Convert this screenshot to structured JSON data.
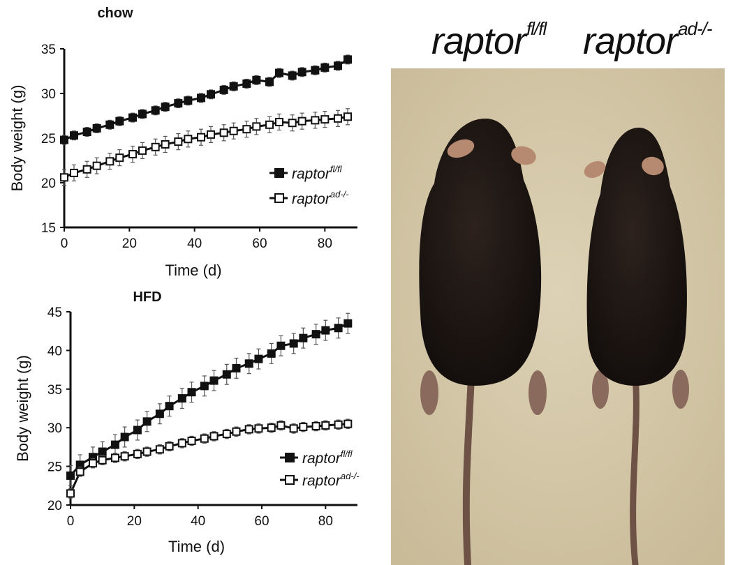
{
  "chart_data": [
    {
      "type": "line",
      "title": "chow",
      "xlabel": "Time (d)",
      "ylabel": "Body weight (g)",
      "xlim": [
        0,
        90
      ],
      "ylim": [
        15,
        35
      ],
      "xticks": [
        0,
        20,
        40,
        60,
        80
      ],
      "yticks": [
        15,
        20,
        25,
        30,
        35
      ],
      "x": [
        0,
        3,
        7,
        10,
        14,
        17,
        21,
        24,
        28,
        31,
        35,
        38,
        42,
        45,
        49,
        52,
        56,
        59,
        63,
        66,
        70,
        73,
        77,
        80,
        84,
        87
      ],
      "series": [
        {
          "name_base": "raptor",
          "name_sup": "fl/fl",
          "marker": "filled-square",
          "values": [
            24.8,
            25.3,
            25.7,
            26.1,
            26.5,
            26.9,
            27.3,
            27.7,
            28.1,
            28.5,
            28.9,
            29.2,
            29.5,
            29.9,
            30.4,
            30.8,
            31.1,
            31.5,
            31.3,
            32.3,
            32.0,
            32.4,
            32.6,
            32.9,
            33.1,
            33.8
          ],
          "error": 0.5
        },
        {
          "name_base": "raptor",
          "name_sup": "ad-/-",
          "marker": "open-square",
          "values": [
            20.6,
            21.1,
            21.5,
            21.9,
            22.4,
            22.8,
            23.2,
            23.6,
            24.0,
            24.3,
            24.6,
            24.9,
            25.1,
            25.4,
            25.6,
            25.8,
            26.0,
            26.3,
            26.5,
            26.8,
            26.7,
            26.9,
            27.0,
            27.1,
            27.2,
            27.4
          ],
          "error": 0.9
        }
      ],
      "legend": "right"
    },
    {
      "type": "line",
      "title": "HFD",
      "xlabel": "Time (d)",
      "ylabel": "Body weight (g)",
      "xlim": [
        0,
        90
      ],
      "ylim": [
        20,
        45
      ],
      "xticks": [
        0,
        20,
        40,
        60,
        80
      ],
      "yticks": [
        20,
        25,
        30,
        35,
        40,
        45
      ],
      "x": [
        0,
        3,
        7,
        10,
        14,
        17,
        21,
        24,
        28,
        31,
        35,
        38,
        42,
        45,
        49,
        52,
        56,
        59,
        63,
        66,
        70,
        73,
        77,
        80,
        84,
        87
      ],
      "series": [
        {
          "name_base": "raptor",
          "name_sup": "fl/fl",
          "marker": "filled-square",
          "values": [
            23.8,
            25.2,
            26.2,
            26.9,
            27.8,
            28.8,
            29.7,
            30.8,
            31.8,
            32.8,
            33.8,
            34.6,
            35.4,
            36.1,
            36.9,
            37.7,
            38.3,
            38.9,
            39.6,
            40.6,
            40.9,
            41.6,
            42.1,
            42.6,
            42.9,
            43.5
          ],
          "error": 1.3
        },
        {
          "name_base": "raptor",
          "name_sup": "ad-/-",
          "marker": "open-square",
          "values": [
            21.5,
            24.3,
            25.4,
            25.8,
            26.1,
            26.3,
            26.6,
            26.9,
            27.2,
            27.6,
            28.0,
            28.3,
            28.6,
            28.9,
            29.2,
            29.5,
            29.8,
            29.9,
            30.0,
            30.3,
            29.9,
            30.1,
            30.2,
            30.3,
            30.4,
            30.5
          ],
          "error": 0.6
        }
      ],
      "legend": "right"
    }
  ],
  "photo": {
    "title_left_base": "raptor",
    "title_left_sup": "fl/fl",
    "title_right_base": "raptor",
    "title_right_sup": "ad-/-",
    "colors": {
      "background": "#d9cdb0",
      "mouse": "#1e1714",
      "ear": "#b58a70",
      "tail": "#6e5246"
    }
  }
}
